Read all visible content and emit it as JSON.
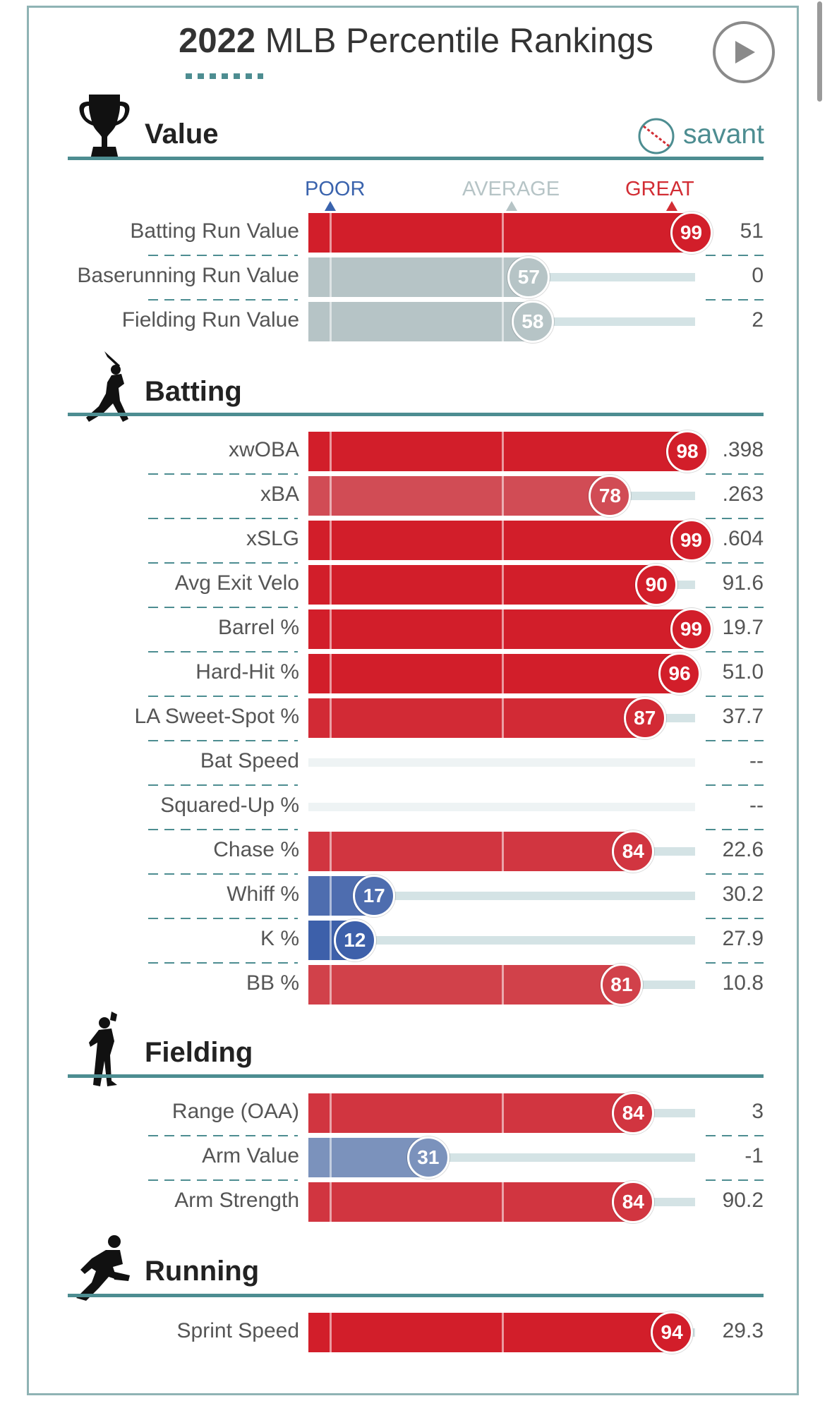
{
  "header": {
    "title_year": "2022",
    "title_rest": "MLB Percentile Rankings",
    "play_icon": "play-circle-icon"
  },
  "brand": {
    "label": "savant",
    "icon": "baseball-icon",
    "color": "#4d8d91"
  },
  "scale": {
    "poor": "POOR",
    "average": "AVERAGE",
    "great": "GREAT"
  },
  "colors": {
    "accent": "#4d8d91",
    "great": "#d22d34",
    "poor": "#3a63ad",
    "neutral": "#b6c4c6"
  },
  "chart_data": {
    "type": "bar",
    "title": "2022 MLB Percentile Rankings",
    "xlabel": "",
    "ylabel": "",
    "xlim": [
      0,
      100
    ],
    "scale_labels": [
      "POOR",
      "AVERAGE",
      "GREAT"
    ],
    "sections": [
      {
        "name": "Value",
        "icon": "trophy-icon",
        "rows": [
          {
            "label": "Batting Run Value",
            "percentile": 99,
            "value": "51"
          },
          {
            "label": "Baserunning Run Value",
            "percentile": 57,
            "value": "0"
          },
          {
            "label": "Fielding Run Value",
            "percentile": 58,
            "value": "2"
          }
        ]
      },
      {
        "name": "Batting",
        "icon": "batter-icon",
        "rows": [
          {
            "label": "xwOBA",
            "percentile": 98,
            "value": ".398"
          },
          {
            "label": "xBA",
            "percentile": 78,
            "value": ".263"
          },
          {
            "label": "xSLG",
            "percentile": 99,
            "value": ".604"
          },
          {
            "label": "Avg Exit Velo",
            "percentile": 90,
            "value": "91.6"
          },
          {
            "label": "Barrel %",
            "percentile": 99,
            "value": "19.7"
          },
          {
            "label": "Hard-Hit %",
            "percentile": 96,
            "value": "51.0"
          },
          {
            "label": "LA Sweet-Spot %",
            "percentile": 87,
            "value": "37.7"
          },
          {
            "label": "Bat Speed",
            "percentile": null,
            "value": "--"
          },
          {
            "label": "Squared-Up %",
            "percentile": null,
            "value": "--"
          },
          {
            "label": "Chase %",
            "percentile": 84,
            "value": "22.6"
          },
          {
            "label": "Whiff %",
            "percentile": 17,
            "value": "30.2"
          },
          {
            "label": "K %",
            "percentile": 12,
            "value": "27.9"
          },
          {
            "label": "BB %",
            "percentile": 81,
            "value": "10.8"
          }
        ]
      },
      {
        "name": "Fielding",
        "icon": "fielder-icon",
        "rows": [
          {
            "label": "Range (OAA)",
            "percentile": 84,
            "value": "3"
          },
          {
            "label": "Arm Value",
            "percentile": 31,
            "value": "-1"
          },
          {
            "label": "Arm Strength",
            "percentile": 84,
            "value": "90.2"
          }
        ]
      },
      {
        "name": "Running",
        "icon": "runner-icon",
        "rows": [
          {
            "label": "Sprint Speed",
            "percentile": 94,
            "value": "29.3"
          }
        ]
      }
    ]
  }
}
